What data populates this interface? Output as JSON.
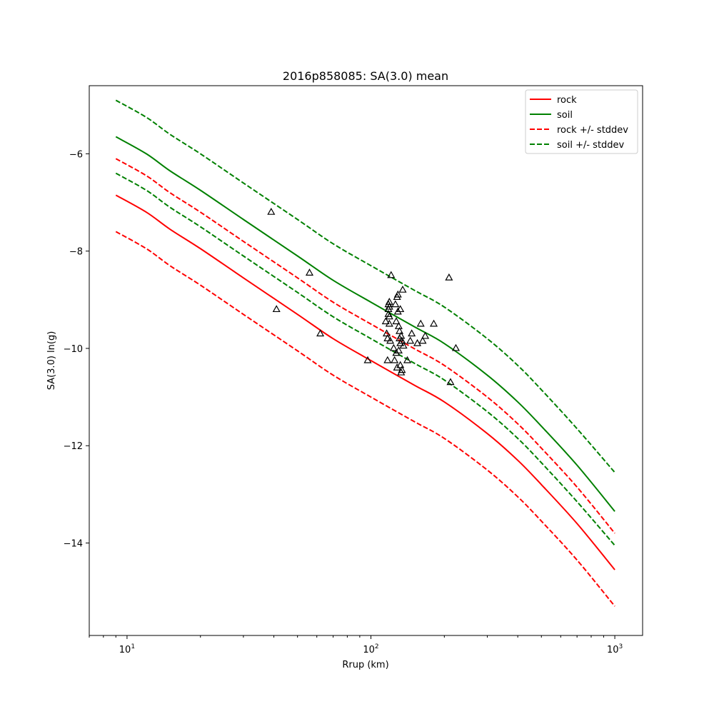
{
  "chart_data": {
    "type": "line",
    "title": "2016p858085: SA(3.0) mean",
    "xlabel": "Rrup (km)",
    "ylabel": "SA(3.0) ln(g)",
    "xscale": "log",
    "xlim": [
      7,
      1300
    ],
    "ylim": [
      -15.9,
      -4.6
    ],
    "x_ticks": [
      {
        "value": 10,
        "base": "10",
        "exp": "1"
      },
      {
        "value": 100,
        "base": "10",
        "exp": "2"
      },
      {
        "value": 1000,
        "base": "10",
        "exp": "3"
      }
    ],
    "y_ticks": [
      {
        "value": -14,
        "label": "−14"
      },
      {
        "value": -12,
        "label": "−12"
      },
      {
        "value": -10,
        "label": "−10"
      },
      {
        "value": -8,
        "label": "−8"
      },
      {
        "value": -6,
        "label": "−6"
      }
    ],
    "legend_position": "upper-right",
    "grid": false,
    "series": [
      {
        "name": "rock",
        "color": "#ff0000",
        "style": "solid",
        "x": [
          9,
          12,
          15,
          20,
          30,
          50,
          70,
          100,
          150,
          200,
          300,
          400,
          500,
          700,
          1000
        ],
        "y": [
          -6.85,
          -7.2,
          -7.55,
          -7.95,
          -8.55,
          -9.3,
          -9.8,
          -10.25,
          -10.75,
          -11.1,
          -11.75,
          -12.3,
          -12.8,
          -13.6,
          -14.55
        ]
      },
      {
        "name": "soil",
        "color": "#008000",
        "style": "solid",
        "x": [
          9,
          12,
          15,
          20,
          30,
          50,
          70,
          100,
          150,
          200,
          300,
          400,
          500,
          700,
          1000
        ],
        "y": [
          -5.65,
          -6.0,
          -6.35,
          -6.75,
          -7.35,
          -8.1,
          -8.6,
          -9.05,
          -9.55,
          -9.9,
          -10.55,
          -11.1,
          -11.6,
          -12.4,
          -13.35
        ]
      },
      {
        "name": "rock +/- stddev",
        "color": "#ff0000",
        "style": "dashed",
        "x": [
          9,
          12,
          15,
          20,
          30,
          50,
          70,
          100,
          150,
          200,
          300,
          400,
          500,
          700,
          1000
        ],
        "y": [
          -6.1,
          -6.45,
          -6.8,
          -7.2,
          -7.8,
          -8.55,
          -9.05,
          -9.5,
          -10.0,
          -10.35,
          -11.0,
          -11.55,
          -12.05,
          -12.85,
          -13.8
        ]
      },
      {
        "color": "#ff0000",
        "style": "dashed",
        "x": [
          9,
          12,
          15,
          20,
          30,
          50,
          70,
          100,
          150,
          200,
          300,
          400,
          500,
          700,
          1000
        ],
        "y": [
          -7.6,
          -7.95,
          -8.3,
          -8.7,
          -9.3,
          -10.05,
          -10.55,
          -11.0,
          -11.5,
          -11.85,
          -12.5,
          -13.05,
          -13.55,
          -14.35,
          -15.3
        ]
      },
      {
        "name": "soil +/- stddev",
        "color": "#008000",
        "style": "dashed",
        "x": [
          9,
          12,
          15,
          20,
          30,
          50,
          70,
          100,
          150,
          200,
          300,
          400,
          500,
          700,
          1000
        ],
        "y": [
          -4.9,
          -5.25,
          -5.6,
          -6.0,
          -6.6,
          -7.35,
          -7.85,
          -8.3,
          -8.8,
          -9.15,
          -9.8,
          -10.35,
          -10.85,
          -11.65,
          -12.55
        ]
      },
      {
        "color": "#008000",
        "style": "dashed",
        "x": [
          9,
          12,
          15,
          20,
          30,
          50,
          70,
          100,
          150,
          200,
          300,
          400,
          500,
          700,
          1000
        ],
        "y": [
          -6.4,
          -6.75,
          -7.1,
          -7.5,
          -8.1,
          -8.85,
          -9.35,
          -9.8,
          -10.3,
          -10.65,
          -11.3,
          -11.85,
          -12.35,
          -13.15,
          -14.05
        ]
      }
    ],
    "observations": {
      "marker": "triangle",
      "color": "#000000",
      "points": [
        [
          39,
          -7.2
        ],
        [
          41,
          -9.2
        ],
        [
          56,
          -8.45
        ],
        [
          62,
          -9.7
        ],
        [
          97,
          -10.25
        ],
        [
          115,
          -9.45
        ],
        [
          116,
          -9.7
        ],
        [
          117,
          -10.25
        ],
        [
          117,
          -9.8
        ],
        [
          118,
          -9.1
        ],
        [
          118,
          -9.2
        ],
        [
          118,
          -9.3
        ],
        [
          119,
          -9.05
        ],
        [
          119,
          -9.15
        ],
        [
          119,
          -9.35
        ],
        [
          119,
          -9.5
        ],
        [
          120,
          -9.85
        ],
        [
          121,
          -8.5
        ],
        [
          124,
          -10.0
        ],
        [
          125,
          -10.25
        ],
        [
          126,
          -9.1
        ],
        [
          127,
          -9.45
        ],
        [
          127,
          -10.1
        ],
        [
          128,
          -10.4
        ],
        [
          128,
          -8.95
        ],
        [
          129,
          -8.9
        ],
        [
          129,
          -9.25
        ],
        [
          130,
          -9.55
        ],
        [
          130,
          -10.05
        ],
        [
          131,
          -9.65
        ],
        [
          131,
          -9.8
        ],
        [
          132,
          -9.2
        ],
        [
          132,
          -9.9
        ],
        [
          132,
          -10.35
        ],
        [
          133,
          -10.5
        ],
        [
          133,
          -9.75
        ],
        [
          134,
          -9.85
        ],
        [
          134,
          -10.45
        ],
        [
          135,
          -8.8
        ],
        [
          136,
          -9.95
        ],
        [
          141,
          -10.25
        ],
        [
          145,
          -9.85
        ],
        [
          147,
          -9.7
        ],
        [
          155,
          -9.9
        ],
        [
          160,
          -9.5
        ],
        [
          163,
          -9.85
        ],
        [
          167,
          -9.75
        ],
        [
          181,
          -9.5
        ],
        [
          209,
          -8.55
        ],
        [
          212,
          -10.7
        ],
        [
          223,
          -10.0
        ]
      ]
    }
  }
}
